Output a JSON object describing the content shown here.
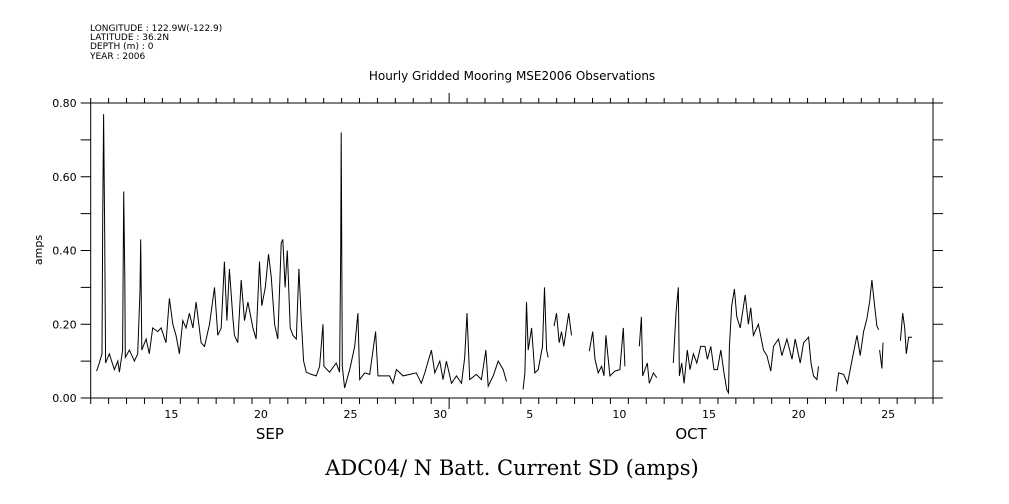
{
  "chart_data": {
    "type": "line",
    "title": "Hourly Gridded Mooring MSE2006 Observations",
    "header": {
      "longitude": "LONGITUDE : 122.9W(-122.9)",
      "latitude": "LATITUDE : 36.2N",
      "depth": "DEPTH (m) : 0",
      "year": "YEAR : 2006"
    },
    "xlabel": "ADC04/ N Batt. Current SD (amps)",
    "ylabel": "amps",
    "x_units": "day number counted from Sep 1 (Oct 1 = 31)",
    "xlim": [
      11,
      58
    ],
    "ylim": [
      0,
      0.8
    ],
    "grid": false,
    "x_ticks": [
      {
        "day": 15,
        "label": "15"
      },
      {
        "day": 20,
        "label": "20"
      },
      {
        "day": 25,
        "label": "25"
      },
      {
        "day": 30,
        "label": "30"
      },
      {
        "day": 35,
        "label": "5"
      },
      {
        "day": 40,
        "label": "10"
      },
      {
        "day": 45,
        "label": "15"
      },
      {
        "day": 50,
        "label": "20"
      },
      {
        "day": 55,
        "label": "25"
      }
    ],
    "month_labels": [
      {
        "day": 21,
        "label": "SEP"
      },
      {
        "day": 44.5,
        "label": "OCT"
      }
    ],
    "y_ticks": [
      {
        "value": 0.0,
        "label": "0.00"
      },
      {
        "value": 0.2,
        "label": "0.20"
      },
      {
        "value": 0.4,
        "label": "0.40"
      },
      {
        "value": 0.6,
        "label": "0.60"
      },
      {
        "value": 0.8,
        "label": "0.80"
      }
    ],
    "color": "#000000",
    "segments": [
      [
        [
          11.33,
          0.073
        ],
        [
          11.48,
          0.095
        ],
        [
          11.63,
          0.12
        ],
        [
          11.67,
          0.48
        ],
        [
          11.72,
          0.77
        ],
        [
          11.78,
          0.44
        ],
        [
          11.83,
          0.095
        ],
        [
          12.04,
          0.12
        ],
        [
          12.32,
          0.077
        ],
        [
          12.51,
          0.1
        ],
        [
          12.6,
          0.07
        ],
        [
          12.78,
          0.13
        ],
        [
          12.84,
          0.56
        ],
        [
          12.9,
          0.33
        ],
        [
          12.93,
          0.11
        ],
        [
          13.16,
          0.13
        ],
        [
          13.44,
          0.1
        ],
        [
          13.62,
          0.12
        ],
        [
          13.75,
          0.29
        ],
        [
          13.79,
          0.43
        ],
        [
          13.85,
          0.13
        ],
        [
          14.09,
          0.16
        ],
        [
          14.27,
          0.12
        ],
        [
          14.46,
          0.19
        ],
        [
          14.74,
          0.18
        ],
        [
          14.93,
          0.19
        ],
        [
          15.2,
          0.15
        ],
        [
          15.39,
          0.27
        ],
        [
          15.58,
          0.2
        ],
        [
          15.76,
          0.17
        ],
        [
          15.95,
          0.12
        ],
        [
          16.14,
          0.21
        ],
        [
          16.32,
          0.19
        ],
        [
          16.51,
          0.23
        ],
        [
          16.7,
          0.19
        ],
        [
          16.88,
          0.26
        ],
        [
          17.16,
          0.15
        ],
        [
          17.35,
          0.14
        ],
        [
          17.63,
          0.2
        ],
        [
          17.91,
          0.3
        ],
        [
          18.09,
          0.17
        ],
        [
          18.28,
          0.19
        ],
        [
          18.46,
          0.37
        ],
        [
          18.6,
          0.21
        ],
        [
          18.74,
          0.35
        ],
        [
          18.93,
          0.22
        ],
        [
          19.02,
          0.17
        ],
        [
          19.21,
          0.15
        ],
        [
          19.4,
          0.32
        ],
        [
          19.58,
          0.21
        ],
        [
          19.77,
          0.26
        ],
        [
          20.05,
          0.19
        ],
        [
          20.23,
          0.16
        ],
        [
          20.42,
          0.37
        ],
        [
          20.55,
          0.25
        ],
        [
          20.74,
          0.3
        ],
        [
          20.92,
          0.39
        ],
        [
          21.07,
          0.33
        ],
        [
          21.26,
          0.2
        ],
        [
          21.44,
          0.16
        ],
        [
          21.63,
          0.42
        ],
        [
          21.72,
          0.43
        ],
        [
          21.85,
          0.3
        ],
        [
          21.97,
          0.4
        ],
        [
          22.13,
          0.19
        ],
        [
          22.28,
          0.17
        ],
        [
          22.47,
          0.16
        ],
        [
          22.62,
          0.35
        ],
        [
          22.75,
          0.21
        ],
        [
          22.88,
          0.1
        ],
        [
          23.03,
          0.07
        ],
        [
          23.31,
          0.064
        ],
        [
          23.59,
          0.06
        ],
        [
          23.77,
          0.086
        ],
        [
          23.96,
          0.2
        ],
        [
          24.01,
          0.086
        ],
        [
          24.33,
          0.07
        ],
        [
          24.7,
          0.095
        ],
        [
          24.89,
          0.07
        ],
        [
          24.95,
          0.4
        ],
        [
          24.98,
          0.72
        ],
        [
          25.04,
          0.086
        ],
        [
          25.17,
          0.027
        ],
        [
          25.45,
          0.077
        ],
        [
          25.73,
          0.14
        ],
        [
          25.91,
          0.23
        ],
        [
          26.01,
          0.05
        ],
        [
          26.29,
          0.068
        ],
        [
          26.57,
          0.064
        ],
        [
          26.9,
          0.18
        ],
        [
          27.03,
          0.06
        ],
        [
          27.68,
          0.06
        ],
        [
          27.87,
          0.04
        ],
        [
          28.06,
          0.077
        ],
        [
          28.43,
          0.06
        ],
        [
          28.8,
          0.064
        ],
        [
          29.17,
          0.068
        ],
        [
          29.45,
          0.04
        ],
        [
          29.64,
          0.068
        ],
        [
          30.01,
          0.13
        ],
        [
          30.2,
          0.068
        ],
        [
          30.48,
          0.1
        ],
        [
          30.66,
          0.05
        ],
        [
          30.85,
          0.1
        ],
        [
          31.13,
          0.04
        ],
        [
          31.41,
          0.06
        ],
        [
          31.69,
          0.04
        ],
        [
          31.87,
          0.11
        ],
        [
          32.0,
          0.23
        ],
        [
          32.15,
          0.05
        ],
        [
          32.52,
          0.064
        ],
        [
          32.8,
          0.05
        ],
        [
          33.05,
          0.13
        ],
        [
          33.18,
          0.032
        ],
        [
          33.46,
          0.06
        ],
        [
          33.74,
          0.1
        ],
        [
          34.02,
          0.077
        ],
        [
          34.2,
          0.045
        ]
      ],
      [
        [
          35.13,
          0.023
        ],
        [
          35.23,
          0.068
        ],
        [
          35.32,
          0.26
        ],
        [
          35.41,
          0.13
        ],
        [
          35.6,
          0.19
        ],
        [
          35.78,
          0.068
        ],
        [
          35.97,
          0.077
        ],
        [
          36.21,
          0.14
        ],
        [
          36.32,
          0.3
        ],
        [
          36.44,
          0.13
        ],
        [
          36.53,
          0.11
        ]
      ],
      [
        [
          36.86,
          0.195
        ],
        [
          36.99,
          0.23
        ],
        [
          37.14,
          0.15
        ],
        [
          37.27,
          0.18
        ],
        [
          37.4,
          0.14
        ],
        [
          37.55,
          0.19
        ],
        [
          37.67,
          0.23
        ],
        [
          37.83,
          0.17
        ]
      ],
      [
        [
          38.82,
          0.127
        ],
        [
          39.01,
          0.18
        ],
        [
          39.14,
          0.105
        ],
        [
          39.32,
          0.068
        ],
        [
          39.51,
          0.086
        ],
        [
          39.64,
          0.06
        ],
        [
          39.75,
          0.17
        ],
        [
          39.97,
          0.06
        ],
        [
          40.25,
          0.073
        ],
        [
          40.53,
          0.077
        ],
        [
          40.72,
          0.19
        ],
        [
          40.81,
          0.086
        ]
      ],
      [
        [
          41.61,
          0.14
        ],
        [
          41.73,
          0.22
        ],
        [
          41.8,
          0.06
        ],
        [
          42.06,
          0.095
        ],
        [
          42.17,
          0.04
        ],
        [
          42.4,
          0.068
        ],
        [
          42.58,
          0.055
        ]
      ],
      [
        [
          43.51,
          0.095
        ],
        [
          43.66,
          0.23
        ],
        [
          43.79,
          0.3
        ],
        [
          43.85,
          0.06
        ],
        [
          43.98,
          0.095
        ],
        [
          44.11,
          0.04
        ],
        [
          44.29,
          0.13
        ],
        [
          44.44,
          0.077
        ],
        [
          44.63,
          0.12
        ],
        [
          44.82,
          0.095
        ],
        [
          45.04,
          0.14
        ],
        [
          45.28,
          0.14
        ],
        [
          45.41,
          0.105
        ],
        [
          45.6,
          0.14
        ],
        [
          45.78,
          0.077
        ],
        [
          45.97,
          0.077
        ],
        [
          46.16,
          0.13
        ],
        [
          46.34,
          0.068
        ],
        [
          46.49,
          0.023
        ],
        [
          46.59,
          0.014
        ],
        [
          46.64,
          0.14
        ],
        [
          46.77,
          0.25
        ],
        [
          46.92,
          0.295
        ],
        [
          47.05,
          0.22
        ],
        [
          47.24,
          0.19
        ],
        [
          47.52,
          0.28
        ],
        [
          47.7,
          0.2
        ],
        [
          47.83,
          0.245
        ],
        [
          47.98,
          0.17
        ],
        [
          48.26,
          0.2
        ],
        [
          48.54,
          0.13
        ],
        [
          48.73,
          0.115
        ],
        [
          48.95,
          0.073
        ],
        [
          49.1,
          0.14
        ],
        [
          49.38,
          0.16
        ],
        [
          49.57,
          0.115
        ],
        [
          49.85,
          0.16
        ],
        [
          50.13,
          0.105
        ],
        [
          50.31,
          0.16
        ],
        [
          50.59,
          0.095
        ],
        [
          50.78,
          0.15
        ],
        [
          51.06,
          0.165
        ],
        [
          51.19,
          0.095
        ],
        [
          51.33,
          0.06
        ],
        [
          51.52,
          0.05
        ],
        [
          51.61,
          0.086
        ]
      ],
      [
        [
          52.6,
          0.018
        ],
        [
          52.73,
          0.068
        ],
        [
          53.01,
          0.064
        ],
        [
          53.23,
          0.04
        ],
        [
          53.38,
          0.077
        ],
        [
          53.53,
          0.115
        ],
        [
          53.76,
          0.17
        ],
        [
          53.94,
          0.115
        ],
        [
          54.13,
          0.18
        ],
        [
          54.31,
          0.215
        ],
        [
          54.46,
          0.26
        ],
        [
          54.59,
          0.32
        ],
        [
          54.72,
          0.26
        ],
        [
          54.87,
          0.195
        ],
        [
          54.97,
          0.185
        ]
      ],
      [
        [
          55.02,
          0.13
        ],
        [
          55.15,
          0.08
        ],
        [
          55.21,
          0.15
        ]
      ],
      [
        [
          56.18,
          0.155
        ],
        [
          56.31,
          0.23
        ],
        [
          56.42,
          0.19
        ],
        [
          56.51,
          0.12
        ],
        [
          56.64,
          0.165
        ],
        [
          56.83,
          0.165
        ]
      ]
    ]
  }
}
